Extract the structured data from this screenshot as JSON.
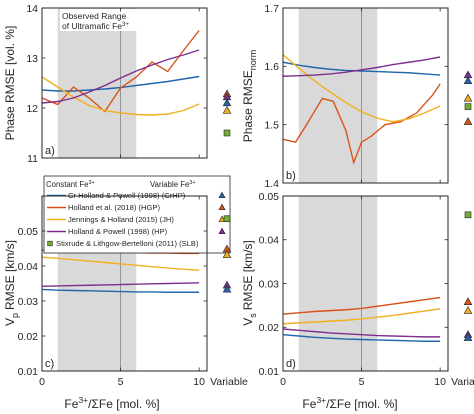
{
  "colors": {
    "CrHP": "#2166ac",
    "HGP": "#d95319",
    "JH": "#f2b01e",
    "HP": "#7e2f8e",
    "SLB": "#77ac30",
    "shade": "#d9d9d9"
  },
  "legend": {
    "constant_header": "Constant Fe",
    "constant_sup": "3+",
    "variable_header": "Variable Fe",
    "variable_sup": "3+",
    "entries": [
      {
        "key": "CrHP",
        "label": "Cr Holland & Powell (1998) (CrHP)",
        "marker": "triangle"
      },
      {
        "key": "HGP",
        "label": "Holland et al. (2018) (HGP)",
        "marker": "triangle"
      },
      {
        "key": "JH",
        "label": "Jennings & Holland (2015) (JH)",
        "marker": "triangle"
      },
      {
        "key": "HP",
        "label": "Holland & Powell (1998) (HP)",
        "marker": "triangle"
      },
      {
        "key": "SLB",
        "label": "Stixrude & Lithgow-Bertelloni (2011) (SLB)",
        "marker": "square"
      }
    ]
  },
  "annotation": {
    "line1": "Observed Range",
    "line2": "of Ultramafic Fe",
    "sup": "3+"
  },
  "xaxis": {
    "label_pre": "Fe",
    "label_sup": "3+",
    "label_post": "/ΣFe [mol. %]",
    "variable_label": "Variable",
    "ticks": [
      "0",
      "5",
      "10"
    ]
  },
  "chart_data": [
    {
      "id": "a",
      "type": "line",
      "panel_label": "a)",
      "ylabel": "Phase RMSE [vol. %]",
      "xlim": [
        0,
        10.5
      ],
      "ylim": [
        11,
        14
      ],
      "yticks": [
        "11",
        "12",
        "13",
        "14"
      ],
      "observed_range": [
        1,
        6
      ],
      "series": [
        {
          "key": "CrHP",
          "x": [
            0,
            1,
            2,
            3,
            4,
            5,
            6,
            7,
            8,
            9,
            10
          ],
          "y": [
            12.36,
            12.34,
            12.34,
            12.36,
            12.38,
            12.41,
            12.45,
            12.49,
            12.53,
            12.58,
            12.63
          ]
        },
        {
          "key": "HGP",
          "x": [
            0,
            1,
            2,
            3,
            4,
            5,
            6,
            7,
            8,
            9,
            10
          ],
          "y": [
            12.2,
            12.07,
            12.42,
            12.2,
            11.93,
            12.4,
            12.62,
            12.92,
            12.73,
            13.15,
            13.55
          ]
        },
        {
          "key": "JH",
          "x": [
            0,
            1,
            2,
            3,
            4,
            5,
            6,
            7,
            8,
            9,
            10
          ],
          "y": [
            12.62,
            12.42,
            12.22,
            12.05,
            11.95,
            11.9,
            11.87,
            11.86,
            11.88,
            11.95,
            12.08
          ]
        },
        {
          "key": "HP",
          "x": [
            0,
            1,
            2,
            3,
            4,
            5,
            6,
            7,
            8,
            9,
            10
          ],
          "y": [
            12.1,
            12.13,
            12.2,
            12.32,
            12.45,
            12.6,
            12.74,
            12.86,
            12.97,
            13.06,
            13.16
          ]
        }
      ],
      "variable_points": [
        {
          "key": "HGP",
          "marker": "triangle",
          "y": 12.28
        },
        {
          "key": "HP",
          "marker": "triangle",
          "y": 12.22
        },
        {
          "key": "CrHP",
          "marker": "triangle",
          "y": 12.1
        },
        {
          "key": "JH",
          "marker": "triangle",
          "y": 11.95
        },
        {
          "key": "SLB",
          "marker": "square",
          "y": 11.5
        }
      ]
    },
    {
      "id": "b",
      "type": "line",
      "panel_label": "b)",
      "ylabel": "Phase RMSE",
      "ylabel_sub": "norm",
      "xlim": [
        0,
        10.5
      ],
      "ylim": [
        1.4,
        1.7
      ],
      "yticks": [
        "1.4",
        "1.5",
        "1.6",
        "1.7"
      ],
      "observed_range": [
        1,
        6
      ],
      "series": [
        {
          "key": "CrHP",
          "x": [
            0,
            1,
            2,
            3,
            4,
            5,
            6,
            7,
            8,
            9,
            10
          ],
          "y": [
            1.607,
            1.602,
            1.598,
            1.595,
            1.593,
            1.592,
            1.591,
            1.59,
            1.589,
            1.587,
            1.585
          ]
        },
        {
          "key": "HGP",
          "x": [
            0,
            0.8,
            1.5,
            2.5,
            3.2,
            4.0,
            4.5,
            5.0,
            5.6,
            6.5,
            7.5,
            8.5,
            9.5,
            10
          ],
          "y": [
            1.475,
            1.47,
            1.5,
            1.545,
            1.54,
            1.49,
            1.435,
            1.47,
            1.48,
            1.5,
            1.505,
            1.52,
            1.55,
            1.57
          ]
        },
        {
          "key": "JH",
          "x": [
            0,
            1,
            2,
            3,
            4,
            5,
            6,
            7,
            8,
            9,
            10
          ],
          "y": [
            1.62,
            1.597,
            1.575,
            1.556,
            1.538,
            1.522,
            1.511,
            1.505,
            1.51,
            1.52,
            1.532
          ]
        },
        {
          "key": "HP",
          "x": [
            0,
            1,
            2,
            3,
            4,
            5,
            6,
            7,
            8,
            9,
            10
          ],
          "y": [
            1.583,
            1.584,
            1.585,
            1.587,
            1.59,
            1.594,
            1.598,
            1.603,
            1.607,
            1.611,
            1.616
          ]
        }
      ],
      "variable_points": [
        {
          "key": "HP",
          "marker": "triangle",
          "y": 1.585
        },
        {
          "key": "CrHP",
          "marker": "triangle",
          "y": 1.575
        },
        {
          "key": "JH",
          "marker": "triangle",
          "y": 1.545
        },
        {
          "key": "SLB",
          "marker": "square",
          "y": 1.531
        },
        {
          "key": "HGP",
          "marker": "triangle",
          "y": 1.505
        }
      ]
    },
    {
      "id": "c",
      "type": "line",
      "panel_label": "c)",
      "ylabel": "V",
      "ylabel_sub": "p",
      "ylabel_post": "RMSE [km/s]",
      "xlim": [
        0,
        10.5
      ],
      "ylim": [
        0.01,
        0.06
      ],
      "yticks": [
        "0.01",
        "0.02",
        "0.03",
        "0.04",
        "0.05"
      ],
      "observed_range": [
        1,
        6
      ],
      "series": [
        {
          "key": "CrHP",
          "x": [
            0,
            1,
            2,
            3,
            4,
            5,
            6,
            7,
            8,
            9,
            10
          ],
          "y": [
            0.0333,
            0.0331,
            0.033,
            0.0329,
            0.0328,
            0.0327,
            0.0326,
            0.0326,
            0.0325,
            0.0325,
            0.0325
          ]
        },
        {
          "key": "HGP",
          "x": [
            0,
            1,
            2,
            3,
            4,
            5,
            6,
            7,
            8,
            9,
            10
          ],
          "y": [
            0.0445,
            0.0452,
            0.0449,
            0.0446,
            0.0443,
            0.044,
            0.0438,
            0.0437,
            0.0437,
            0.0436,
            0.0436
          ]
        },
        {
          "key": "JH",
          "x": [
            0,
            1,
            2,
            3,
            4,
            5,
            6,
            7,
            8,
            9,
            10
          ],
          "y": [
            0.0425,
            0.0422,
            0.0418,
            0.0414,
            0.041,
            0.0406,
            0.0402,
            0.0398,
            0.0394,
            0.0391,
            0.0388
          ]
        },
        {
          "key": "HP",
          "x": [
            0,
            1,
            2,
            3,
            4,
            5,
            6,
            7,
            8,
            9,
            10
          ],
          "y": [
            0.0342,
            0.0343,
            0.0344,
            0.0345,
            0.0346,
            0.0347,
            0.0348,
            0.0349,
            0.035,
            0.0351,
            0.0352
          ]
        }
      ],
      "variable_points": [
        {
          "key": "SLB",
          "marker": "square",
          "y": 0.0535
        },
        {
          "key": "HGP",
          "marker": "triangle",
          "y": 0.0448
        },
        {
          "key": "JH",
          "marker": "triangle",
          "y": 0.0432
        },
        {
          "key": "HP",
          "marker": "triangle",
          "y": 0.0345
        },
        {
          "key": "CrHP",
          "marker": "triangle",
          "y": 0.0333
        }
      ]
    },
    {
      "id": "d",
      "type": "line",
      "panel_label": "d)",
      "ylabel": "V",
      "ylabel_sub": "s",
      "ylabel_post": "RMSE [km/s]",
      "xlim": [
        0,
        10.5
      ],
      "ylim": [
        0.01,
        0.05
      ],
      "yticks": [
        "0.01",
        "0.02",
        "0.03",
        "0.04",
        "0.05"
      ],
      "observed_range": [
        1,
        6
      ],
      "series": [
        {
          "key": "CrHP",
          "x": [
            0,
            1,
            2,
            3,
            4,
            5,
            6,
            7,
            8,
            9,
            10
          ],
          "y": [
            0.0183,
            0.018,
            0.0177,
            0.0175,
            0.0173,
            0.0172,
            0.0171,
            0.017,
            0.0169,
            0.0168,
            0.0168
          ]
        },
        {
          "key": "HGP",
          "x": [
            0,
            1,
            2,
            3,
            4,
            5,
            6,
            7,
            8,
            9,
            10
          ],
          "y": [
            0.023,
            0.0233,
            0.0236,
            0.0238,
            0.024,
            0.0243,
            0.0248,
            0.0253,
            0.0258,
            0.0263,
            0.0268
          ]
        },
        {
          "key": "JH",
          "x": [
            0,
            1,
            2,
            3,
            4,
            5,
            6,
            7,
            8,
            9,
            10
          ],
          "y": [
            0.0208,
            0.021,
            0.0212,
            0.0214,
            0.0216,
            0.0219,
            0.0223,
            0.0227,
            0.0232,
            0.0237,
            0.0242
          ]
        },
        {
          "key": "HP",
          "x": [
            0,
            1,
            2,
            3,
            4,
            5,
            6,
            7,
            8,
            9,
            10
          ],
          "y": [
            0.0196,
            0.0193,
            0.019,
            0.0187,
            0.0185,
            0.0183,
            0.0181,
            0.018,
            0.0179,
            0.0178,
            0.0178
          ]
        }
      ],
      "variable_points": [
        {
          "key": "SLB",
          "marker": "square",
          "y": 0.0457
        },
        {
          "key": "HGP",
          "marker": "triangle",
          "y": 0.0258
        },
        {
          "key": "JH",
          "marker": "triangle",
          "y": 0.0238
        },
        {
          "key": "HP",
          "marker": "triangle",
          "y": 0.0183
        },
        {
          "key": "CrHP",
          "marker": "triangle",
          "y": 0.0176
        }
      ]
    }
  ]
}
